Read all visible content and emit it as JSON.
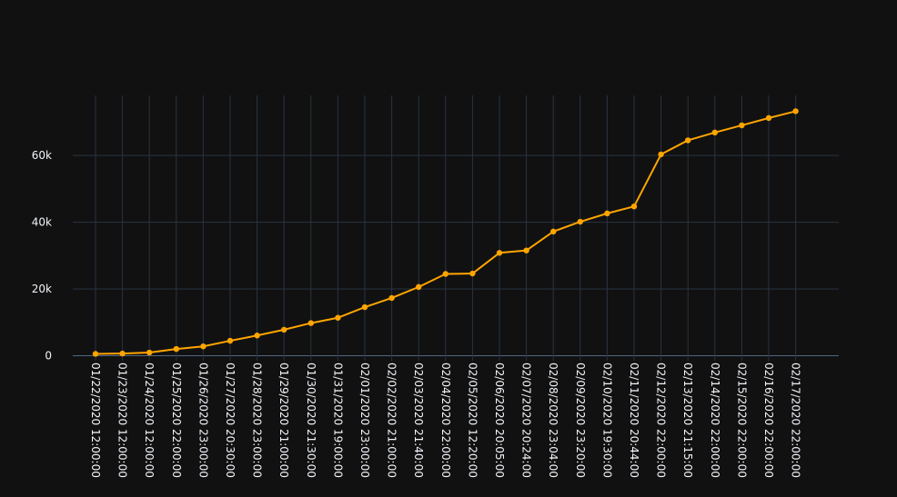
{
  "chart_data": {
    "type": "line",
    "title": "",
    "xlabel": "",
    "ylabel": "",
    "x": [
      "01/22/2020 12:00:00",
      "01/23/2020 12:00:00",
      "01/24/2020 12:00:00",
      "01/25/2020 22:00:00",
      "01/26/2020 23:00:00",
      "01/27/2020 20:30:00",
      "01/28/2020 23:00:00",
      "01/29/2020 21:00:00",
      "01/30/2020 21:30:00",
      "01/31/2020 19:00:00",
      "02/01/2020 23:00:00",
      "02/02/2020 21:00:00",
      "02/03/2020 21:40:00",
      "02/04/2020 22:00:00",
      "02/05/2020 12:20:00",
      "02/06/2020 20:05:00",
      "02/07/2020 20:24:00",
      "02/08/2020 23:04:00",
      "02/09/2020 23:20:00",
      "02/10/2020 19:30:00",
      "02/11/2020 20:44:00",
      "02/12/2020 22:00:00",
      "02/13/2020 21:15:00",
      "02/14/2020 22:00:00",
      "02/15/2020 22:00:00",
      "02/16/2020 22:00:00",
      "02/17/2020 22:00:00"
    ],
    "values": [
      555,
      653,
      941,
      2019,
      2794,
      4473,
      6057,
      7783,
      9776,
      11374,
      14553,
      17295,
      20588,
      24503,
      24630,
      30818,
      31532,
      37198,
      40150,
      42638,
      44730,
      60328,
      64543,
      66887,
      69032,
      71226,
      73260
    ],
    "ylim": [
      -1500,
      78000
    ],
    "yticks": [
      0,
      20000,
      40000,
      60000
    ],
    "ytick_labels": [
      "0",
      "20k",
      "40k",
      "60k"
    ],
    "grid": true,
    "legend": "none",
    "colors": {
      "background": "#111111",
      "line": "#FFA500",
      "grid": "#283442",
      "zeroline": "#506784",
      "text": "#f2f5fa"
    }
  }
}
